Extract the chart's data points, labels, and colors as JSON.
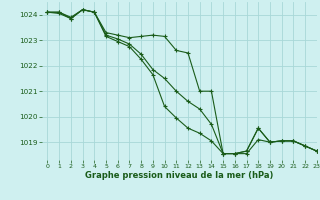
{
  "bg_color": "#cff0f0",
  "grid_color": "#a8d8d8",
  "line_color": "#1a5c1a",
  "marker_color": "#1a5c1a",
  "xlabel": "Graphe pression niveau de la mer (hPa)",
  "xlabel_color": "#1a5c1a",
  "tick_color": "#1a5c1a",
  "xlim": [
    -0.5,
    23
  ],
  "ylim": [
    1018.3,
    1024.5
  ],
  "yticks": [
    1019,
    1020,
    1021,
    1022,
    1023,
    1024
  ],
  "xticks": [
    0,
    1,
    2,
    3,
    4,
    5,
    6,
    7,
    8,
    9,
    10,
    11,
    12,
    13,
    14,
    15,
    16,
    17,
    18,
    19,
    20,
    21,
    22,
    23
  ],
  "series1_x": [
    0,
    1,
    2,
    3,
    4,
    5,
    6,
    7,
    8,
    9,
    10,
    11,
    12,
    13,
    14,
    15,
    16,
    17,
    18,
    19,
    20,
    21,
    22,
    23
  ],
  "series1_y": [
    1024.1,
    1024.1,
    1023.9,
    1024.2,
    1024.1,
    1023.3,
    1023.2,
    1023.1,
    1023.15,
    1023.2,
    1023.15,
    1022.6,
    1022.5,
    1021.0,
    1021.0,
    1018.55,
    1018.55,
    1018.65,
    1019.55,
    1019.0,
    1019.05,
    1019.05,
    1018.85,
    1018.65
  ],
  "series2_x": [
    0,
    1,
    2,
    3,
    4,
    5,
    6,
    7,
    8,
    9,
    10,
    11,
    12,
    13,
    14,
    15,
    16,
    17,
    18,
    19,
    20,
    21,
    22,
    23
  ],
  "series2_y": [
    1024.1,
    1024.1,
    1023.85,
    1024.2,
    1024.1,
    1023.2,
    1023.05,
    1022.85,
    1022.45,
    1021.85,
    1021.5,
    1021.0,
    1020.6,
    1020.3,
    1019.7,
    1018.55,
    1018.55,
    1018.55,
    1019.1,
    1019.0,
    1019.05,
    1019.05,
    1018.85,
    1018.65
  ],
  "series3_x": [
    0,
    1,
    2,
    3,
    4,
    5,
    6,
    7,
    8,
    9,
    10,
    11,
    12,
    13,
    14,
    15,
    16,
    17,
    18,
    19,
    20,
    21,
    22,
    23
  ],
  "series3_y": [
    1024.1,
    1024.05,
    1023.85,
    1024.2,
    1024.1,
    1023.15,
    1022.95,
    1022.75,
    1022.25,
    1021.65,
    1020.4,
    1019.95,
    1019.55,
    1019.35,
    1019.05,
    1018.55,
    1018.55,
    1018.65,
    1019.55,
    1019.0,
    1019.05,
    1019.05,
    1018.85,
    1018.65
  ],
  "figsize": [
    3.2,
    2.0
  ],
  "dpi": 100
}
